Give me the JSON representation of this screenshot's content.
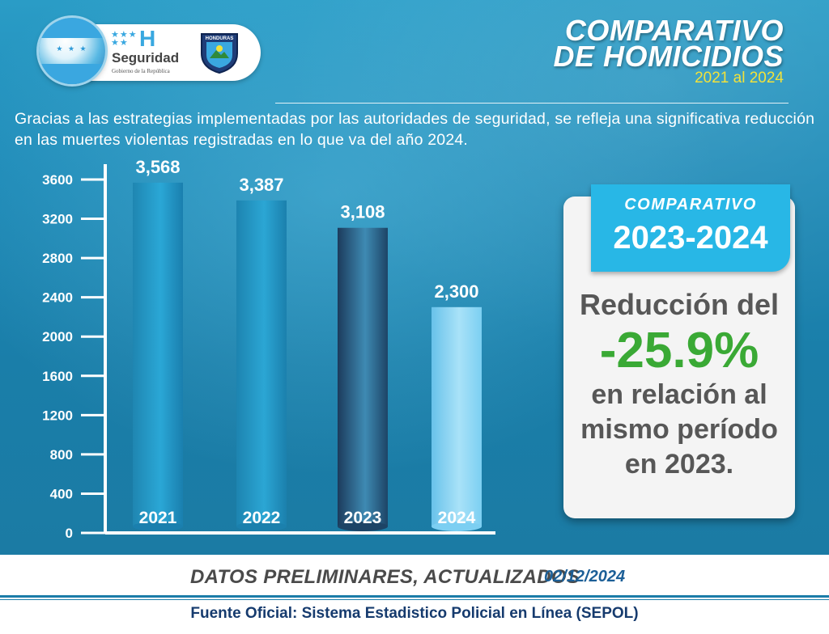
{
  "header": {
    "brand_name": "Seguridad",
    "brand_sub": "Gobierno de la República",
    "brand_letter": "H",
    "police_badge_text": "HONDURAS",
    "title_line1": "COMPARATIVO",
    "title_line2": "DE HOMICIDIOS",
    "title_years": "2021 al 2024"
  },
  "intro_text": "Gracias a las estrategias implementadas por las autoridades de seguridad, se refleja una significativa reducción en las muertes violentas registradas en lo que va del año 2024.",
  "chart_data": {
    "type": "bar",
    "categories": [
      "2021",
      "2022",
      "2023",
      "2024"
    ],
    "values": [
      3568,
      3387,
      3108,
      2300
    ],
    "value_labels": [
      "3,568",
      "3,387",
      "3,108",
      "2,300"
    ],
    "yticks": [
      0,
      400,
      800,
      1200,
      1600,
      2000,
      2400,
      2800,
      3200,
      3600
    ],
    "ylim": [
      0,
      3700
    ],
    "title": "",
    "xlabel": "",
    "ylabel": "",
    "grid": false,
    "bar_colors": [
      [
        "#1f86b1",
        "#2aa7d6",
        "#1a7fae"
      ],
      [
        "#1d84b0",
        "#2ba6d4",
        "#1b80ad"
      ],
      [
        "#1c3b5c",
        "#3e8ab3",
        "#1d4466"
      ],
      [
        "#68c2ea",
        "#a9e2f8",
        "#7ccff2"
      ]
    ]
  },
  "comparison": {
    "badge_title": "COMPARATIVO",
    "badge_years": "2023-2024",
    "line1": "Reducción del",
    "percent": "-25.9%",
    "line2": "en relación al",
    "line3": "mismo período",
    "line4": "en 2023."
  },
  "footer": {
    "note": "DATOS PRELIMINARES, ACTUALIZADOS",
    "date": "02/12/2024",
    "source": "Fuente Oficial: Sistema Estadistico Policial en Línea (SEPOL)"
  },
  "colors": {
    "accent_cyan": "#28b7e6",
    "accent_green": "#3aa935",
    "accent_yellow": "#f2e23a",
    "navy": "#163b6e"
  }
}
